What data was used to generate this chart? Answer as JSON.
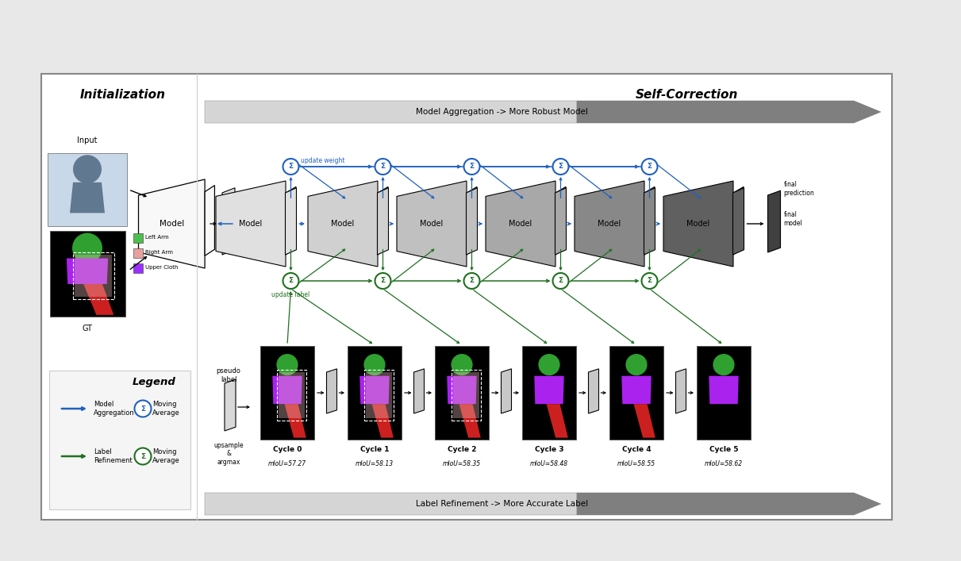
{
  "bg_color": "#e8e8e8",
  "panel_bg": "#ffffff",
  "section_init_title": "Initialization",
  "section_self_title": "Self-Correction",
  "model_agg_text": "Model Aggregation -> More Robust Model",
  "label_ref_text": "Label Refinement -> More Accurate Label",
  "update_weight_text": "update weight",
  "update_label_text": "update label",
  "pseudo_label_text": "pseudo\nlabel",
  "upsample_text": "upsample\n&\nargmax",
  "final_model_text": "final\nmodel",
  "final_prediction_text": "final\nprediction",
  "input_text": "Input",
  "gt_text": "GT",
  "legend_title": "Legend",
  "gt_legend": [
    {
      "label": "Left Arm",
      "color": "#4dbe4d"
    },
    {
      "label": "Right Arm",
      "color": "#e8a0a0"
    },
    {
      "label": "Upper Cloth",
      "color": "#9b30ff"
    }
  ],
  "cycles": [
    "Cycle 0",
    "Cycle 1",
    "Cycle 2",
    "Cycle 3",
    "Cycle 4",
    "Cycle 5"
  ],
  "mious": [
    "mIoU=57.27",
    "mIoU=58.13",
    "mIoU=58.35",
    "mIoU=58.48",
    "mIoU=58.55",
    "mIoU=58.62"
  ],
  "arrow_blue": "#2060c0",
  "arrow_green": "#207020",
  "sigma_border_blue": "#2060c0",
  "sigma_border_green": "#207020",
  "model_trap_colors": [
    "#f2f2f2",
    "#e0e0e0",
    "#d0d0d0",
    "#c0c0c0",
    "#a8a8a8",
    "#888888",
    "#606060"
  ],
  "seg_colors": {
    "bg": "#000000",
    "head": "#30a030",
    "body": "#aa22ee",
    "leg": "#cc2020",
    "arm_left": "#4dbe4d",
    "arm_right": "#e8a0a0"
  }
}
